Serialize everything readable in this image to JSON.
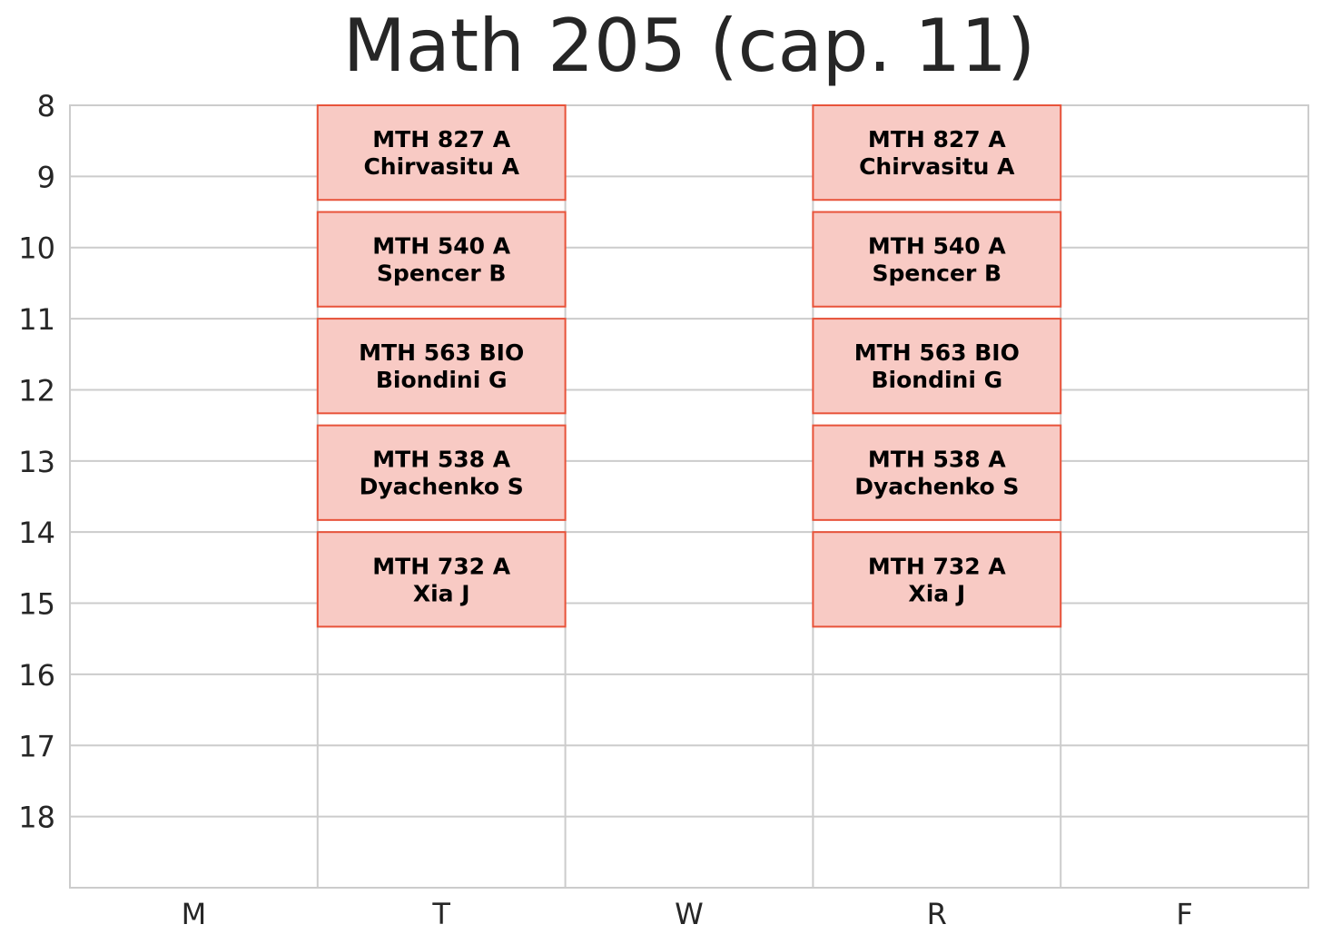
{
  "chart_data": {
    "type": "timetable",
    "title": "Math 205 (cap. 11)",
    "days": [
      "M",
      "T",
      "W",
      "R",
      "F"
    ],
    "hour_ticks": [
      8,
      9,
      10,
      11,
      12,
      13,
      14,
      15,
      16,
      17,
      18
    ],
    "ylim": [
      8,
      19
    ],
    "grid": true,
    "colors": {
      "block_fill": "#f8cac4",
      "block_edge": "#e8533a",
      "grid": "#cccccc",
      "text": "#262626"
    },
    "blocks": [
      {
        "day": "T",
        "start": 8.0,
        "end": 9.33,
        "course": "MTH 827 A",
        "instructor": "Chirvasitu A"
      },
      {
        "day": "T",
        "start": 9.5,
        "end": 10.83,
        "course": "MTH 540 A",
        "instructor": "Spencer B"
      },
      {
        "day": "T",
        "start": 11.0,
        "end": 12.33,
        "course": "MTH 563 BIO",
        "instructor": "Biondini G"
      },
      {
        "day": "T",
        "start": 12.5,
        "end": 13.83,
        "course": "MTH 538 A",
        "instructor": "Dyachenko S"
      },
      {
        "day": "T",
        "start": 14.0,
        "end": 15.33,
        "course": "MTH 732 A",
        "instructor": "Xia J"
      },
      {
        "day": "R",
        "start": 8.0,
        "end": 9.33,
        "course": "MTH 827 A",
        "instructor": "Chirvasitu A"
      },
      {
        "day": "R",
        "start": 9.5,
        "end": 10.83,
        "course": "MTH 540 A",
        "instructor": "Spencer B"
      },
      {
        "day": "R",
        "start": 11.0,
        "end": 12.33,
        "course": "MTH 563 BIO",
        "instructor": "Biondini G"
      },
      {
        "day": "R",
        "start": 12.5,
        "end": 13.83,
        "course": "MTH 538 A",
        "instructor": "Dyachenko S"
      },
      {
        "day": "R",
        "start": 14.0,
        "end": 15.33,
        "course": "MTH 732 A",
        "instructor": "Xia J"
      }
    ]
  }
}
